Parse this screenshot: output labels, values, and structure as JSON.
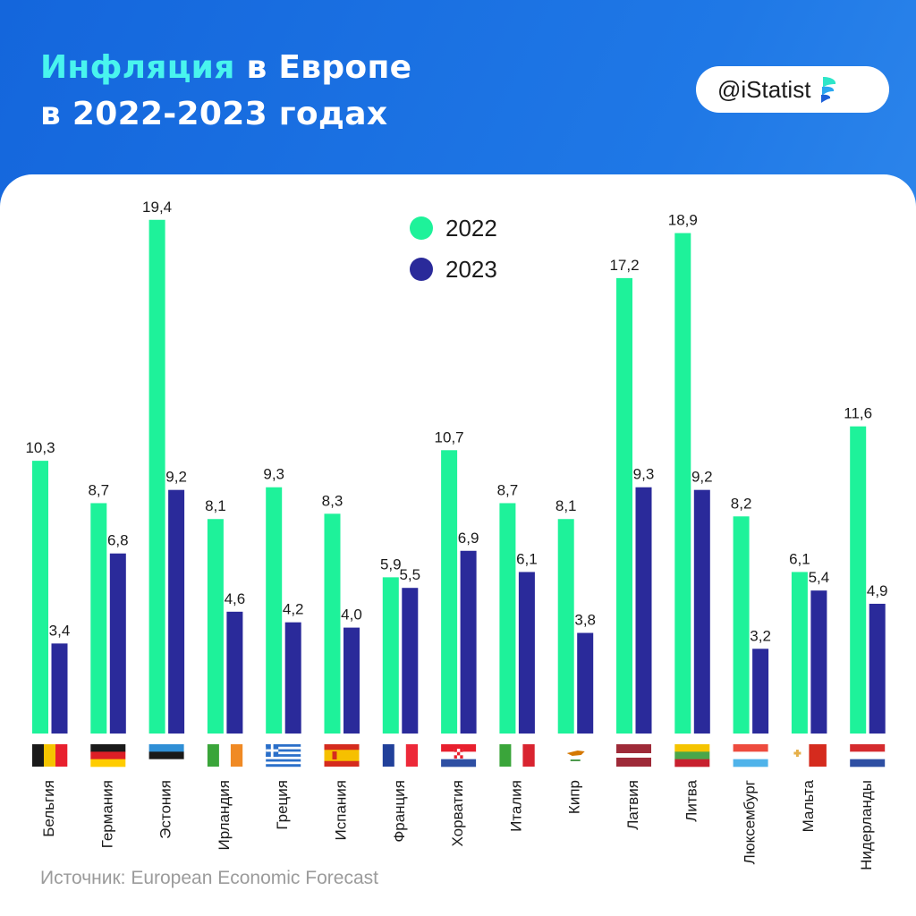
{
  "header": {
    "title_accent": "Инфляция",
    "title_rest": " в Европе",
    "title_line2": "в 2022-2023 годах"
  },
  "brand": {
    "handle": "@iStatist",
    "logo": "feather-logo-icon"
  },
  "source": "Источник: European Economic Forecast",
  "colors": {
    "series_2022": "#1ef29a",
    "series_2023": "#2a2a9a",
    "accent": "#49f4ee",
    "header_bg": "#1466dc"
  },
  "chart_data": {
    "type": "bar",
    "title": "Инфляция в Европе в 2022-2023 годах",
    "xlabel": "",
    "ylabel": "",
    "ylim": [
      0,
      20
    ],
    "grid": false,
    "legend_position": "top-center",
    "categories": [
      "Бельгия",
      "Германия",
      "Эстония",
      "Ирландия",
      "Греция",
      "Испания",
      "Франция",
      "Хорватия",
      "Италия",
      "Кипр",
      "Латвия",
      "Литва",
      "Люксембург",
      "Мальта",
      "Нидерланды"
    ],
    "labels": {
      "2022": [
        "10,3",
        "8,7",
        "19,4",
        "8,1",
        "9,3",
        "8,3",
        "5,9",
        "10,7",
        "8,7",
        "8,1",
        "17,2",
        "18,9",
        "8,2",
        "6,1",
        "11,6"
      ],
      "2023": [
        "3,4",
        "6,8",
        "9,2",
        "4,6",
        "4,2",
        "4,0",
        "5,5",
        "6,9",
        "6,1",
        "3,8",
        "9,3",
        "9,2",
        "3,2",
        "5,4",
        "4,9"
      ]
    },
    "series": [
      {
        "name": "2022",
        "values": [
          10.3,
          8.7,
          19.4,
          8.1,
          9.3,
          8.3,
          5.9,
          10.7,
          8.7,
          8.1,
          17.2,
          18.9,
          8.2,
          6.1,
          11.6
        ]
      },
      {
        "name": "2023",
        "values": [
          3.4,
          6.8,
          9.2,
          4.6,
          4.2,
          4.0,
          5.5,
          6.9,
          6.1,
          3.8,
          9.3,
          9.2,
          3.2,
          5.4,
          4.9
        ]
      }
    ],
    "flags": [
      {
        "country": "Бельгия",
        "icon": "belgium-flag-icon",
        "layout": "v3",
        "colors": [
          "#1a1a1a",
          "#f5c400",
          "#e8202e"
        ]
      },
      {
        "country": "Германия",
        "icon": "germany-flag-icon",
        "layout": "h3",
        "colors": [
          "#1a1a1a",
          "#dd1f26",
          "#ffcc00"
        ]
      },
      {
        "country": "Эстония",
        "icon": "estonia-flag-icon",
        "layout": "h3",
        "colors": [
          "#2f8fd6",
          "#1a1a1a",
          "#ffffff"
        ]
      },
      {
        "country": "Ирландия",
        "icon": "ireland-flag-icon",
        "layout": "v3",
        "colors": [
          "#3aa53a",
          "#ffffff",
          "#f08a24"
        ]
      },
      {
        "country": "Греция",
        "icon": "greece-flag-icon",
        "layout": "greece",
        "colors": [
          "#2a6fc9",
          "#ffffff"
        ]
      },
      {
        "country": "Испания",
        "icon": "spain-flag-icon",
        "layout": "spain",
        "colors": [
          "#d52b1e",
          "#f6c000"
        ]
      },
      {
        "country": "Франция",
        "icon": "france-flag-icon",
        "layout": "v3",
        "colors": [
          "#21409a",
          "#ffffff",
          "#ed2939"
        ]
      },
      {
        "country": "Хорватия",
        "icon": "croatia-flag-icon",
        "layout": "h3-shield",
        "colors": [
          "#e8202e",
          "#ffffff",
          "#2e4fa3"
        ]
      },
      {
        "country": "Италия",
        "icon": "italy-flag-icon",
        "layout": "v3",
        "colors": [
          "#3aa53a",
          "#ffffff",
          "#d92430"
        ]
      },
      {
        "country": "Кипр",
        "icon": "cyprus-flag-icon",
        "layout": "cyprus",
        "colors": [
          "#ffffff",
          "#d57800",
          "#4e9a4e"
        ]
      },
      {
        "country": "Латвия",
        "icon": "latvia-flag-icon",
        "layout": "latvia",
        "colors": [
          "#9e2a38",
          "#ffffff"
        ]
      },
      {
        "country": "Литва",
        "icon": "lithuania-flag-icon",
        "layout": "h3",
        "colors": [
          "#f5c400",
          "#4aa64a",
          "#c8202e"
        ]
      },
      {
        "country": "Люксембург",
        "icon": "luxembourg-flag-icon",
        "layout": "h3",
        "colors": [
          "#ee4b3e",
          "#ffffff",
          "#4fb3ea"
        ]
      },
      {
        "country": "Мальта",
        "icon": "malta-flag-icon",
        "layout": "malta",
        "colors": [
          "#ffffff",
          "#d52b1e",
          "#e6b04a"
        ]
      },
      {
        "country": "Нидерланды",
        "icon": "netherlands-flag-icon",
        "layout": "h3",
        "colors": [
          "#d52b2e",
          "#ffffff",
          "#2e4fa3"
        ]
      }
    ]
  }
}
